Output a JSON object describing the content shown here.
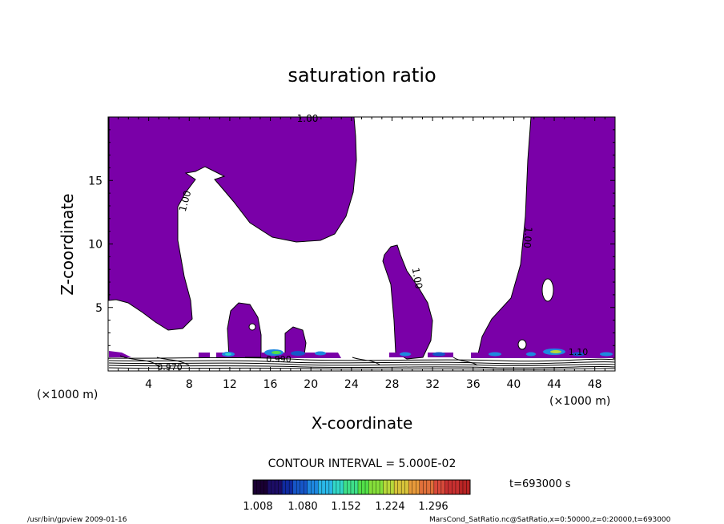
{
  "chart_data": {
    "type": "contour",
    "title": "saturation ratio",
    "xlabel": "X-coordinate",
    "ylabel": "Z-coordinate",
    "x_unit": "(×1000 m)",
    "y_unit": "(×1000 m)",
    "xlim": [
      0,
      50
    ],
    "ylim": [
      0,
      20
    ],
    "x_ticks": [
      4,
      8,
      12,
      16,
      20,
      24,
      28,
      32,
      36,
      40,
      44,
      48
    ],
    "y_ticks": [
      5,
      10,
      15
    ],
    "contour_labels": [
      "1.00",
      "1.00",
      "1.00",
      "1.00",
      "0.970",
      "0.990",
      "1.10"
    ],
    "contour_interval": "CONTOUR INTERVAL = 5.000E-02",
    "fill_color": "#7a00a8",
    "colorbar": {
      "tick_labels": [
        "1.008",
        "1.080",
        "1.152",
        "1.224",
        "1.296"
      ],
      "colors": [
        "#1a0033",
        "#1c0d66",
        "#102aa0",
        "#1656c8",
        "#1e88e0",
        "#2ab8e8",
        "#32d8c8",
        "#3ee08a",
        "#52e048",
        "#86e03a",
        "#b8d83a",
        "#d8c43a",
        "#e89a3a",
        "#e0703a",
        "#d84a3a",
        "#c83030",
        "#b82424"
      ]
    },
    "time_label": "t=693000 s",
    "footer_left": "/usr/bin/gpview   2009-01-16",
    "footer_right": "MarsCond_SatRatio.nc@SatRatio,x=0:50000,z=0:20000,t=693000"
  }
}
